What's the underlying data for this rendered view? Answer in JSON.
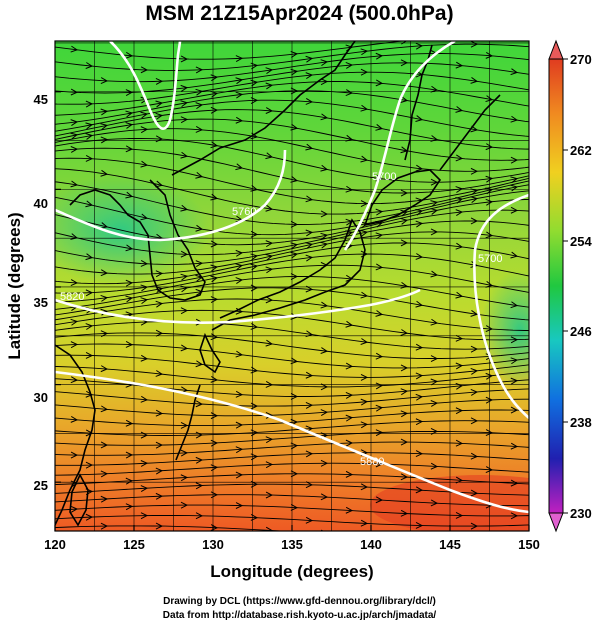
{
  "title": "MSM 21Z15Apr2024 (500.0hPa)",
  "chart_data": {
    "type": "heatmap",
    "variable_note": "temperature field with wind streamlines and height contours",
    "xlabel": "Longitude (degrees)",
    "ylabel": "Latitude  (degrees)",
    "xlim": [
      120,
      150
    ],
    "ylim": [
      22.5,
      47.6
    ],
    "x_ticks": [
      "120",
      "125",
      "130",
      "135",
      "140",
      "145",
      "150"
    ],
    "y_ticks": [
      "25",
      "30",
      "35",
      "40",
      "45"
    ],
    "colorbar": {
      "min": 230,
      "max": 270,
      "ticks": [
        "270",
        "262",
        "254",
        "246",
        "238",
        "230"
      ]
    },
    "contour_labels": [
      "5880",
      "5820",
      "5760",
      "5700"
    ],
    "grid": true
  },
  "credits": {
    "line1": "Drawing by DCL (https://www.gfd-dennou.org/library/dcl/)",
    "line2": "Data from http://database.rish.kyoto-u.ac.jp/arch/jmadata/"
  }
}
